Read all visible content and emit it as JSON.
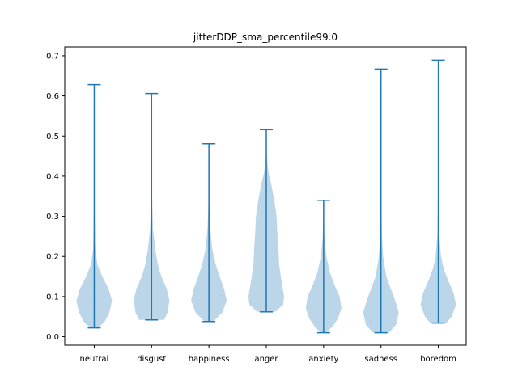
{
  "chart_data": {
    "type": "violin",
    "title": "jitterDDP_sma_percentile99.0",
    "xlabel": "",
    "ylabel": "",
    "categories": [
      "neutral",
      "disgust",
      "happiness",
      "anger",
      "anxiety",
      "sadness",
      "boredom"
    ],
    "ylim": [
      -0.021,
      0.722
    ],
    "yticks": [
      0.0,
      0.1,
      0.2,
      0.3,
      0.4,
      0.5,
      0.6,
      0.7
    ],
    "ytick_labels": [
      "0.0",
      "0.1",
      "0.2",
      "0.3",
      "0.4",
      "0.5",
      "0.6",
      "0.7"
    ],
    "grid": false,
    "colors": {
      "violin_fill": "#1f77b4",
      "line": "#1f77b4",
      "fill_opacity": "0.3"
    },
    "violins": [
      {
        "name": "neutral",
        "min": 0.022,
        "max": 0.628,
        "profile": [
          [
            0.022,
            0.2
          ],
          [
            0.035,
            0.55
          ],
          [
            0.06,
            0.85
          ],
          [
            0.09,
            1.0
          ],
          [
            0.12,
            0.8
          ],
          [
            0.15,
            0.45
          ],
          [
            0.18,
            0.18
          ],
          [
            0.22,
            0.06
          ],
          [
            0.3,
            0.02
          ],
          [
            0.4,
            0.008
          ],
          [
            0.5,
            0.004
          ],
          [
            0.628,
            0.002
          ]
        ]
      },
      {
        "name": "disgust",
        "min": 0.042,
        "max": 0.606,
        "profile": [
          [
            0.042,
            0.7
          ],
          [
            0.06,
            0.9
          ],
          [
            0.09,
            1.0
          ],
          [
            0.12,
            0.85
          ],
          [
            0.15,
            0.55
          ],
          [
            0.18,
            0.35
          ],
          [
            0.22,
            0.2
          ],
          [
            0.27,
            0.08
          ],
          [
            0.35,
            0.03
          ],
          [
            0.45,
            0.01
          ],
          [
            0.55,
            0.004
          ],
          [
            0.606,
            0.002
          ]
        ]
      },
      {
        "name": "happiness",
        "min": 0.038,
        "max": 0.481,
        "profile": [
          [
            0.038,
            0.25
          ],
          [
            0.06,
            0.75
          ],
          [
            0.09,
            1.0
          ],
          [
            0.12,
            0.85
          ],
          [
            0.15,
            0.6
          ],
          [
            0.18,
            0.38
          ],
          [
            0.22,
            0.18
          ],
          [
            0.27,
            0.08
          ],
          [
            0.33,
            0.03
          ],
          [
            0.4,
            0.01
          ],
          [
            0.481,
            0.003
          ]
        ]
      },
      {
        "name": "anger",
        "min": 0.062,
        "max": 0.516,
        "profile": [
          [
            0.062,
            0.5
          ],
          [
            0.08,
            0.95
          ],
          [
            0.1,
            1.0
          ],
          [
            0.14,
            0.85
          ],
          [
            0.18,
            0.72
          ],
          [
            0.22,
            0.68
          ],
          [
            0.26,
            0.62
          ],
          [
            0.3,
            0.58
          ],
          [
            0.34,
            0.45
          ],
          [
            0.38,
            0.28
          ],
          [
            0.41,
            0.12
          ],
          [
            0.45,
            0.03
          ],
          [
            0.516,
            0.003
          ]
        ]
      },
      {
        "name": "anxiety",
        "min": 0.01,
        "max": 0.34,
        "profile": [
          [
            0.01,
            0.15
          ],
          [
            0.025,
            0.5
          ],
          [
            0.045,
            0.8
          ],
          [
            0.07,
            1.0
          ],
          [
            0.1,
            0.9
          ],
          [
            0.13,
            0.6
          ],
          [
            0.16,
            0.35
          ],
          [
            0.2,
            0.15
          ],
          [
            0.25,
            0.05
          ],
          [
            0.3,
            0.015
          ],
          [
            0.34,
            0.003
          ]
        ]
      },
      {
        "name": "sadness",
        "min": 0.01,
        "max": 0.667,
        "profile": [
          [
            0.01,
            0.45
          ],
          [
            0.03,
            0.85
          ],
          [
            0.06,
            1.0
          ],
          [
            0.09,
            0.8
          ],
          [
            0.12,
            0.55
          ],
          [
            0.15,
            0.3
          ],
          [
            0.2,
            0.12
          ],
          [
            0.25,
            0.05
          ],
          [
            0.35,
            0.02
          ],
          [
            0.45,
            0.008
          ],
          [
            0.55,
            0.004
          ],
          [
            0.667,
            0.002
          ]
        ]
      },
      {
        "name": "boredom",
        "min": 0.034,
        "max": 0.689,
        "profile": [
          [
            0.034,
            0.45
          ],
          [
            0.05,
            0.75
          ],
          [
            0.08,
            1.0
          ],
          [
            0.11,
            0.85
          ],
          [
            0.14,
            0.55
          ],
          [
            0.17,
            0.3
          ],
          [
            0.2,
            0.15
          ],
          [
            0.25,
            0.06
          ],
          [
            0.32,
            0.03
          ],
          [
            0.4,
            0.012
          ],
          [
            0.5,
            0.005
          ],
          [
            0.6,
            0.003
          ],
          [
            0.689,
            0.002
          ]
        ]
      }
    ]
  }
}
